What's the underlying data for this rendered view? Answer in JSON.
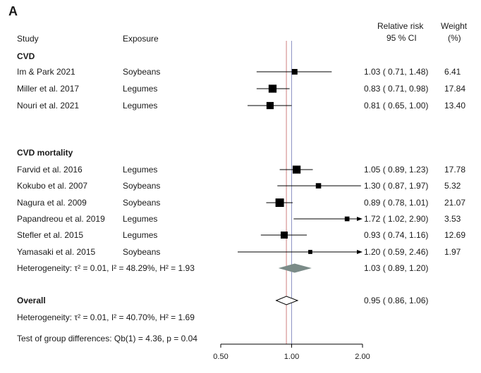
{
  "panel_label": "A",
  "headers": {
    "study": "Study",
    "exposure": "Exposure",
    "rr_line1": "Relative risk",
    "rr_line2": "95 % CI",
    "weight_line1": "Weight",
    "weight_line2": "(%)"
  },
  "groups": {
    "cvd": "CVD",
    "cvd_mortality": "CVD mortality",
    "overall": "Overall"
  },
  "notes": {
    "het_cvd_mortality": "Heterogeneity: τ² = 0.01, I² = 48.29%, H² = 1.93",
    "het_overall": "Heterogeneity: τ² = 0.01, I² = 40.70%, H² = 1.69",
    "group_test": "Test of group differences: Qb(1) = 4.36, p = 0.04"
  },
  "colors": {
    "null_line": "#8f95c4",
    "overall_line": "#d07f7f",
    "subgroup_diamond": "#7b8b88",
    "marker": "#000000"
  },
  "chart_data": {
    "type": "forest",
    "x_scale": "log",
    "x_ticks": [
      "0.50",
      "1.00",
      "2.00"
    ],
    "xlim": [
      0.5,
      2.0
    ],
    "null_value": 1.0,
    "rows": [
      {
        "group": "CVD",
        "study": "Im & Park 2021",
        "exposure": "Soybeans",
        "rr": 1.03,
        "lo": 0.71,
        "hi": 1.48,
        "label": "1.03 ( 0.71,  1.48)",
        "weight": "6.41"
      },
      {
        "group": "CVD",
        "study": "Miller et al. 2017",
        "exposure": "Legumes",
        "rr": 0.83,
        "lo": 0.71,
        "hi": 0.98,
        "label": "0.83 ( 0.71,  0.98)",
        "weight": "17.84"
      },
      {
        "group": "CVD",
        "study": "Nouri et al. 2021",
        "exposure": "Legumes",
        "rr": 0.81,
        "lo": 0.65,
        "hi": 1.0,
        "label": "0.81 ( 0.65,  1.00)",
        "weight": "13.40"
      },
      {
        "group": "CVD mortality",
        "study": "Farvid et al. 2016",
        "exposure": "Legumes",
        "rr": 1.05,
        "lo": 0.89,
        "hi": 1.23,
        "label": "1.05 ( 0.89,  1.23)",
        "weight": "17.78"
      },
      {
        "group": "CVD mortality",
        "study": "Kokubo et al. 2007",
        "exposure": "Soybeans",
        "rr": 1.3,
        "lo": 0.87,
        "hi": 1.97,
        "label": "1.30 ( 0.87,  1.97)",
        "weight": "5.32"
      },
      {
        "group": "CVD mortality",
        "study": "Nagura et al. 2009",
        "exposure": "Soybeans",
        "rr": 0.89,
        "lo": 0.78,
        "hi": 1.01,
        "label": "0.89 ( 0.78,  1.01)",
        "weight": "21.07"
      },
      {
        "group": "CVD mortality",
        "study": "Papandreou et al. 2019",
        "exposure": "Legumes",
        "rr": 1.72,
        "lo": 1.02,
        "hi": 2.9,
        "label": "1.72 ( 1.02,  2.90)",
        "weight": "3.53"
      },
      {
        "group": "CVD mortality",
        "study": "Stefler et al. 2015",
        "exposure": "Legumes",
        "rr": 0.93,
        "lo": 0.74,
        "hi": 1.16,
        "label": "0.93 ( 0.74,  1.16)",
        "weight": "12.69"
      },
      {
        "group": "CVD mortality",
        "study": "Yamasaki et al. 2015",
        "exposure": "Soybeans",
        "rr": 1.2,
        "lo": 0.59,
        "hi": 2.46,
        "label": "1.20 ( 0.59,  2.46)",
        "weight": "1.97"
      }
    ],
    "subgroup_summary": {
      "group": "CVD mortality",
      "rr": 1.03,
      "lo": 0.89,
      "hi": 1.2,
      "label": "1.03 ( 0.89,  1.20)"
    },
    "overall_summary": {
      "rr": 0.95,
      "lo": 0.86,
      "hi": 1.06,
      "label": "0.95 ( 0.86,  1.06)"
    }
  }
}
